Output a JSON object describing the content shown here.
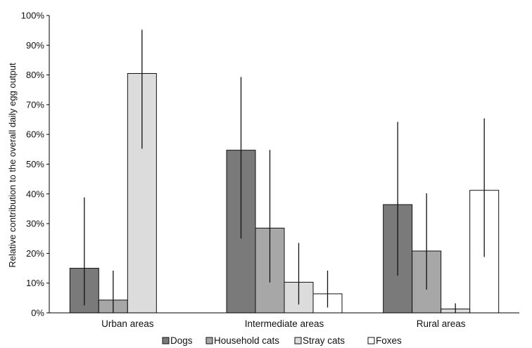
{
  "chart_data": {
    "type": "bar",
    "title": "",
    "xlabel": "",
    "ylabel": "Relative contribution to the overall daily egg output",
    "ylim": [
      0,
      100
    ],
    "yticks": [
      "0%",
      "10%",
      "20%",
      "30%",
      "40%",
      "50%",
      "60%",
      "70%",
      "80%",
      "90%",
      "100%"
    ],
    "categories": [
      "Urban areas",
      "Intermediate areas",
      "Rural areas"
    ],
    "series": [
      {
        "name": "Dogs",
        "color": "#7a7a7a",
        "values": [
          15,
          54.7,
          36.4
        ],
        "err_low": [
          2.5,
          25,
          12.5
        ],
        "err_high": [
          38.8,
          79.3,
          64.2
        ]
      },
      {
        "name": "Household cats",
        "color": "#a7a7a7",
        "values": [
          4.3,
          28.5,
          20.8
        ],
        "err_low": [
          0,
          10.2,
          7.8
        ],
        "err_high": [
          14.2,
          54.8,
          40.2
        ]
      },
      {
        "name": "Stray cats",
        "color": "#dcdcdc",
        "values": [
          80.5,
          10.3,
          1.3
        ],
        "err_low": [
          55.2,
          2.8,
          0
        ],
        "err_high": [
          95.2,
          23.5,
          3.2
        ]
      },
      {
        "name": "Foxes",
        "color": "#ffffff",
        "values": [
          0,
          6.4,
          41.2
        ],
        "err_low": [
          0,
          1.8,
          18.8
        ],
        "err_high": [
          0,
          14.2,
          65.4
        ]
      }
    ],
    "grid": false,
    "legend_position": "bottom"
  }
}
